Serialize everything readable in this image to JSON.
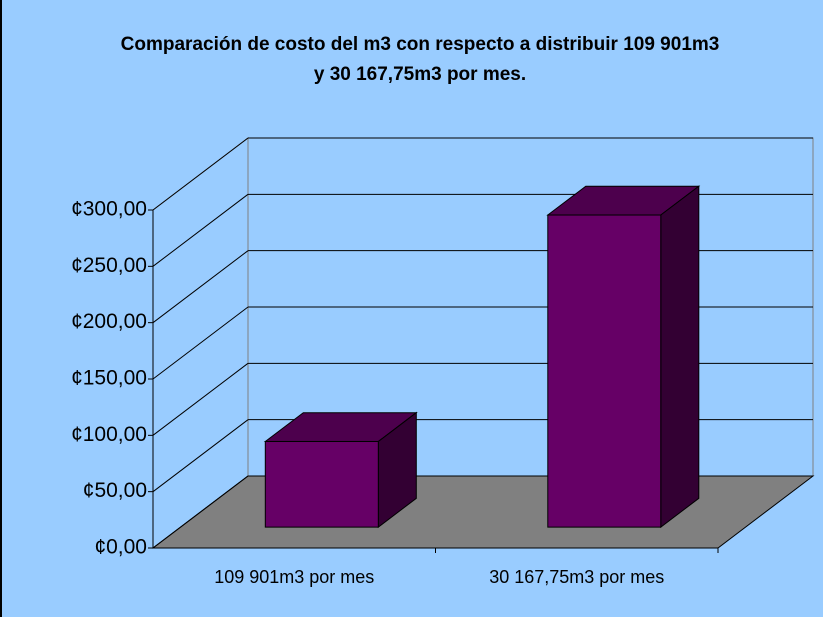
{
  "chart_data": {
    "type": "bar3d",
    "title": "Comparación de costo del m3 con respecto a distribuir 109 901m3 y 30 167,75m3 por mes.",
    "categories": [
      "109 901m3 por mes",
      "30 167,75m3 por mes"
    ],
    "values": [
      76,
      277
    ],
    "color": "#660066",
    "ylim": [
      0,
      300
    ],
    "yticks": [
      {
        "value": 0,
        "label": "¢0,00"
      },
      {
        "value": 50,
        "label": "¢50,00"
      },
      {
        "value": 100,
        "label": "¢100,00"
      },
      {
        "value": 150,
        "label": "¢150,00"
      },
      {
        "value": 200,
        "label": "¢200,00"
      },
      {
        "value": 250,
        "label": "¢250,00"
      },
      {
        "value": 300,
        "label": "¢300,00"
      }
    ],
    "grid": true
  }
}
